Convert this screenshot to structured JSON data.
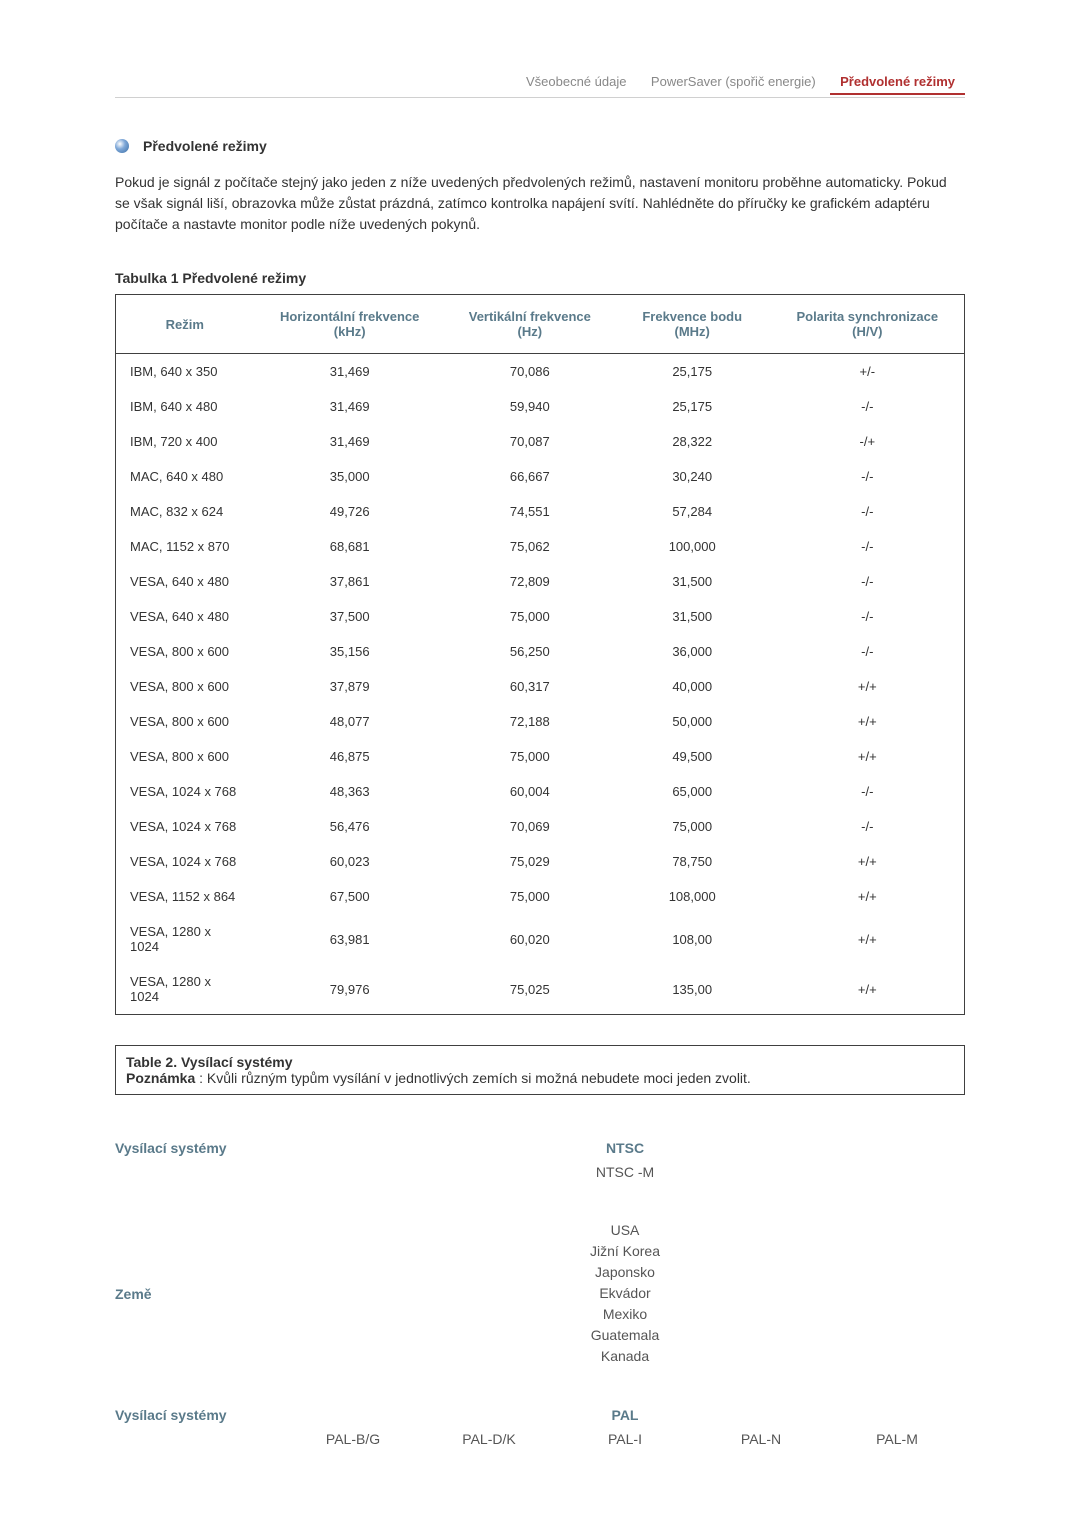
{
  "tabs": {
    "items": [
      {
        "label": "Všeobecné údaje",
        "active": false
      },
      {
        "label": "PowerSaver (spořič energie)",
        "active": false
      },
      {
        "label": "Předvolené režimy",
        "active": true
      }
    ]
  },
  "section": {
    "title": "Předvolené režimy",
    "body": "Pokud je signál z počítače stejný jako jeden z níže uvedených předvolených režimů, nastavení monitoru proběhne automaticky. Pokud se však signál liší, obrazovka může zůstat prázdná, zatímco kontrolka napájení svítí. Nahlédněte do příručky ke grafickém adaptéru počítače a nastavte monitor podle níže uvedených pokynů."
  },
  "modes_table": {
    "caption": "Tabulka 1 Předvolené režimy",
    "columns": {
      "mode": "Režim",
      "hfreq": "Horizontální frekvence (kHz)",
      "vfreq": "Vertikální frekvence (Hz)",
      "pclk": "Frekvence bodu (MHz)",
      "pol": "Polarita synchronizace (H/V)"
    },
    "rows": [
      {
        "mode": "IBM, 640 x 350",
        "h": "31,469",
        "v": "70,086",
        "p": "25,175",
        "pol": "+/-"
      },
      {
        "mode": "IBM, 640 x 480",
        "h": "31,469",
        "v": "59,940",
        "p": "25,175",
        "pol": "-/-"
      },
      {
        "mode": "IBM, 720 x 400",
        "h": "31,469",
        "v": "70,087",
        "p": "28,322",
        "pol": "-/+"
      },
      {
        "mode": "MAC, 640 x 480",
        "h": "35,000",
        "v": "66,667",
        "p": "30,240",
        "pol": "-/-"
      },
      {
        "mode": "MAC, 832 x 624",
        "h": "49,726",
        "v": "74,551",
        "p": "57,284",
        "pol": "-/-"
      },
      {
        "mode": "MAC, 1152 x 870",
        "h": "68,681",
        "v": "75,062",
        "p": "100,000",
        "pol": "-/-"
      },
      {
        "mode": "VESA, 640 x 480",
        "h": "37,861",
        "v": "72,809",
        "p": "31,500",
        "pol": "-/-"
      },
      {
        "mode": "VESA, 640 x 480",
        "h": "37,500",
        "v": "75,000",
        "p": "31,500",
        "pol": "-/-"
      },
      {
        "mode": "VESA, 800 x 600",
        "h": "35,156",
        "v": "56,250",
        "p": "36,000",
        "pol": "-/-"
      },
      {
        "mode": "VESA, 800 x 600",
        "h": "37,879",
        "v": "60,317",
        "p": "40,000",
        "pol": "+/+"
      },
      {
        "mode": "VESA, 800 x 600",
        "h": "48,077",
        "v": "72,188",
        "p": "50,000",
        "pol": "+/+"
      },
      {
        "mode": "VESA, 800 x 600",
        "h": "46,875",
        "v": "75,000",
        "p": "49,500",
        "pol": "+/+"
      },
      {
        "mode": "VESA, 1024 x 768",
        "h": "48,363",
        "v": "60,004",
        "p": "65,000",
        "pol": "-/-"
      },
      {
        "mode": "VESA, 1024 x 768",
        "h": "56,476",
        "v": "70,069",
        "p": "75,000",
        "pol": "-/-"
      },
      {
        "mode": "VESA, 1024 x 768",
        "h": "60,023",
        "v": "75,029",
        "p": "78,750",
        "pol": "+/+"
      },
      {
        "mode": "VESA, 1152 x 864",
        "h": "67,500",
        "v": "75,000",
        "p": "108,000",
        "pol": "+/+"
      },
      {
        "mode": "VESA, 1280 x 1024",
        "h": "63,981",
        "v": "60,020",
        "p": "108,00",
        "pol": "+/+"
      },
      {
        "mode": "VESA, 1280 x 1024",
        "h": "79,976",
        "v": "75,025",
        "p": "135,00",
        "pol": "+/+"
      }
    ]
  },
  "note": {
    "title": "Table 2. Vysílací systémy",
    "label": "Poznámka",
    "text": " : Kvůli různým typům vysílání v jednotlivých zemích si možná nebudete moci jeden zvolit."
  },
  "broadcast": {
    "labels": {
      "systems": "Vysílací systémy",
      "country": "Země"
    },
    "ntsc": {
      "head": "NTSC",
      "sub": "NTSC -M",
      "countries": [
        "USA",
        "Jižní Korea",
        "Japonsko",
        "Ekvádor",
        "Mexiko",
        "Guatemala",
        "Kanada"
      ]
    },
    "pal": {
      "head": "PAL",
      "variants": [
        "PAL-B/G",
        "PAL-D/K",
        "PAL-I",
        "PAL-N",
        "PAL-M"
      ]
    }
  }
}
